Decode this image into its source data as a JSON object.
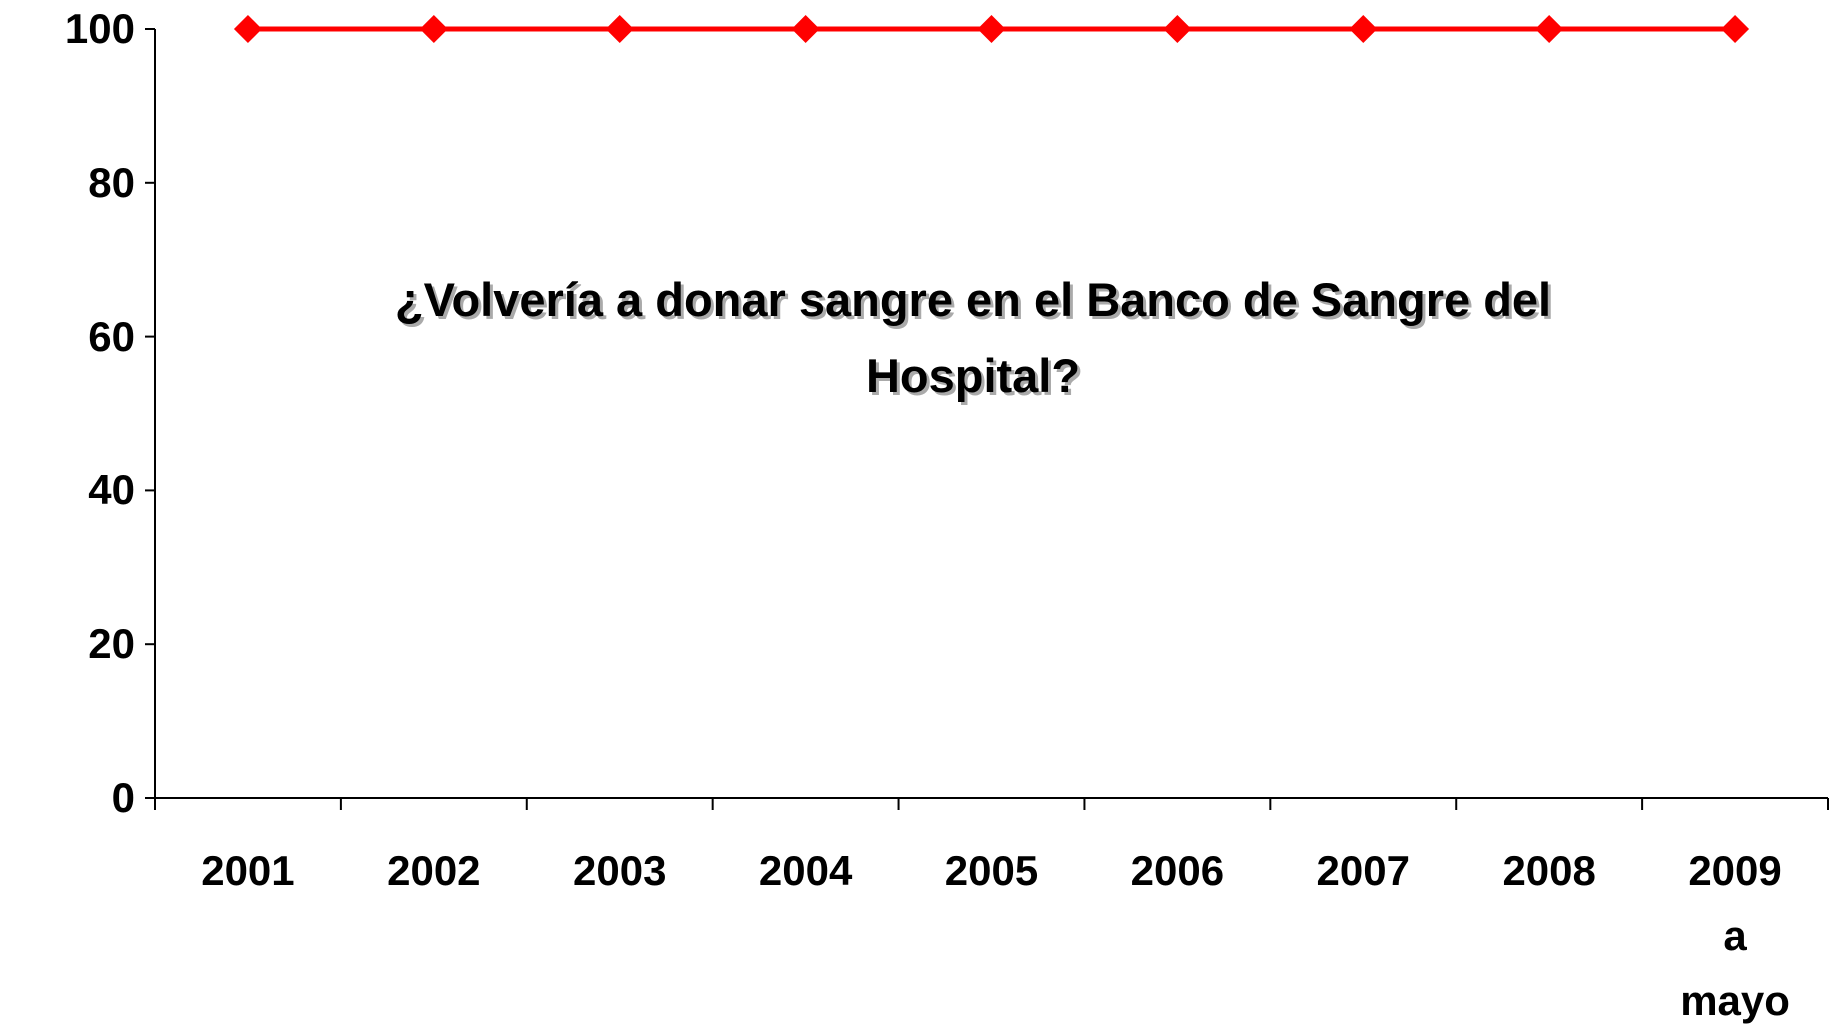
{
  "chart_data": {
    "type": "line",
    "title": "¿Volvería a donar sangre en el Banco de Sangre del Hospital?",
    "categories": [
      "2001",
      "2002",
      "2003",
      "2004",
      "2005",
      "2006",
      "2007",
      "2008",
      "2009\na\nmayo"
    ],
    "series": [
      {
        "name": null,
        "color": "#ff0000",
        "values": [
          100,
          100,
          100,
          100,
          100,
          100,
          100,
          100,
          100
        ]
      }
    ],
    "ylim": [
      0,
      100
    ],
    "yticks": [
      0,
      20,
      40,
      60,
      80,
      100
    ],
    "grid": false
  }
}
